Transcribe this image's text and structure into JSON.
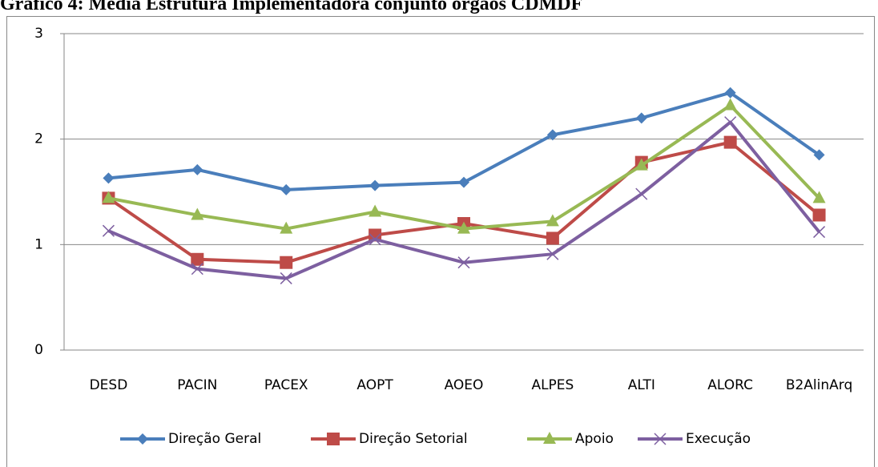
{
  "chart_data": {
    "type": "line",
    "title": "Gráfico 4: Média Estrutura Implementadora conjunto órgãos CDMDF",
    "categories": [
      "DESD",
      "PACIN",
      "PACEX",
      "AOPT",
      "AOEO",
      "ALPES",
      "ALTI",
      "ALORC",
      "B2AlinArq"
    ],
    "series": [
      {
        "name": "Direção Geral",
        "color": "#4a7ebb",
        "marker": "diamond",
        "values": [
          1.63,
          1.71,
          1.52,
          1.56,
          1.59,
          2.04,
          2.2,
          2.44,
          1.85
        ]
      },
      {
        "name": "Direção Setorial",
        "color": "#be4b48",
        "marker": "square",
        "values": [
          1.44,
          0.86,
          0.83,
          1.09,
          1.2,
          1.06,
          1.78,
          1.97,
          1.28
        ]
      },
      {
        "name": "Apoio",
        "color": "#98b954",
        "marker": "triangle",
        "values": [
          1.44,
          1.28,
          1.15,
          1.31,
          1.15,
          1.22,
          1.75,
          2.32,
          1.44
        ]
      },
      {
        "name": "Execução",
        "color": "#7d5fa0",
        "marker": "x",
        "values": [
          1.13,
          0.77,
          0.68,
          1.05,
          0.83,
          0.91,
          1.48,
          2.16,
          1.12
        ]
      }
    ],
    "ylim": [
      0,
      3
    ],
    "yticks": [
      0,
      1,
      2,
      3
    ],
    "grid": true,
    "legend": "bottom"
  }
}
